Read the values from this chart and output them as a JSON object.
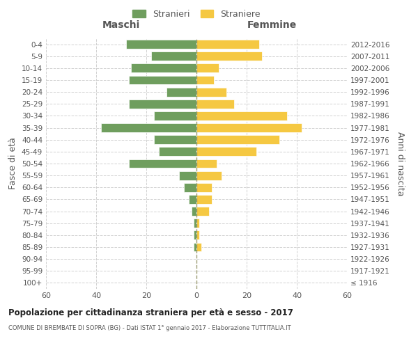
{
  "age_groups": [
    "100+",
    "95-99",
    "90-94",
    "85-89",
    "80-84",
    "75-79",
    "70-74",
    "65-69",
    "60-64",
    "55-59",
    "50-54",
    "45-49",
    "40-44",
    "35-39",
    "30-34",
    "25-29",
    "20-24",
    "15-19",
    "10-14",
    "5-9",
    "0-4"
  ],
  "birth_years": [
    "≤ 1916",
    "1917-1921",
    "1922-1926",
    "1927-1931",
    "1932-1936",
    "1937-1941",
    "1942-1946",
    "1947-1951",
    "1952-1956",
    "1957-1961",
    "1962-1966",
    "1967-1971",
    "1972-1976",
    "1977-1981",
    "1982-1986",
    "1987-1991",
    "1992-1996",
    "1997-2001",
    "2002-2006",
    "2007-2011",
    "2012-2016"
  ],
  "males": [
    0,
    0,
    0,
    1,
    1,
    1,
    2,
    3,
    5,
    7,
    27,
    15,
    17,
    38,
    17,
    27,
    12,
    27,
    26,
    18,
    28
  ],
  "females": [
    0,
    0,
    0,
    2,
    1,
    1,
    5,
    6,
    6,
    10,
    8,
    24,
    33,
    42,
    36,
    15,
    12,
    7,
    9,
    26,
    25
  ],
  "male_color": "#6f9e5e",
  "female_color": "#f5c842",
  "title_main": "Popolazione per cittadinanza straniera per età e sesso - 2017",
  "title_sub": "COMUNE DI BREMBATE DI SOPRA (BG) - Dati ISTAT 1° gennaio 2017 - Elaborazione TUTTITALIA.IT",
  "xlabel_left": "Maschi",
  "xlabel_right": "Femmine",
  "ylabel_left": "Fasce di età",
  "ylabel_right": "Anni di nascita",
  "legend_male": "Stranieri",
  "legend_female": "Straniere",
  "xlim": 60,
  "background_color": "#ffffff",
  "grid_color": "#cccccc",
  "text_color": "#555555",
  "dashed_line_color": "#888855"
}
